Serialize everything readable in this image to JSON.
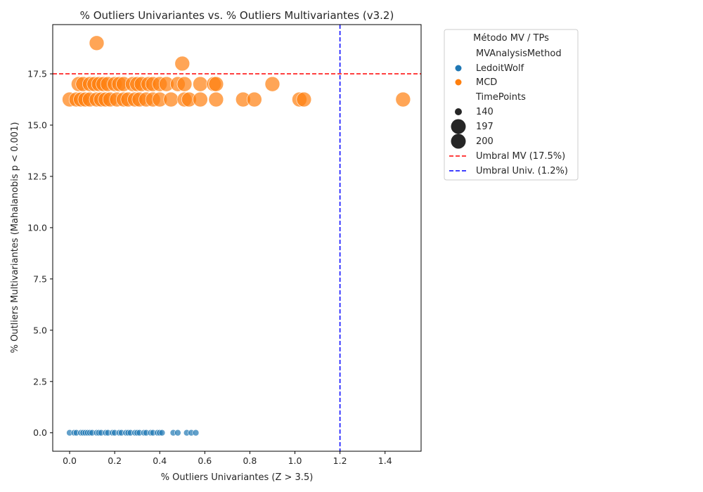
{
  "chart_data": {
    "type": "scatter",
    "title": "% Outliers Univariantes vs. % Outliers Multivariantes (v3.2)",
    "xlabel": "% Outliers Univariantes (Z > 3.5)",
    "ylabel": "% Outliers Multivariantes (Mahalanobis p < 0.001)",
    "xlim": [
      -0.075,
      1.56
    ],
    "ylim": [
      -0.9,
      19.9
    ],
    "xticks": [
      "0.0",
      "0.2",
      "0.4",
      "0.6",
      "0.8",
      "1.0",
      "1.2",
      "1.4"
    ],
    "xtick_values": [
      0,
      0.2,
      0.4,
      0.6,
      0.8,
      1.0,
      1.2,
      1.4
    ],
    "yticks": [
      "0.0",
      "2.5",
      "5.0",
      "7.5",
      "10.0",
      "12.5",
      "15.0",
      "17.5"
    ],
    "ytick_values": [
      0,
      2.5,
      5.0,
      7.5,
      10.0,
      12.5,
      15.0,
      17.5
    ],
    "grid": false,
    "legend_position": "outside-right",
    "reference_lines": [
      {
        "orientation": "horizontal",
        "value": 17.5,
        "label": "Umbral MV (17.5%)",
        "color": "#ff0000",
        "style": "dashed"
      },
      {
        "orientation": "vertical",
        "value": 1.2,
        "label": "Umbral Univ. (1.2%)",
        "color": "#0000ff",
        "style": "dashed"
      }
    ],
    "legend": {
      "title": "Método MV / TPs",
      "hue_title": "MVAnalysisMethod",
      "size_title": "TimePoints",
      "hue_entries": [
        {
          "label": "LedoitWolf",
          "color": "#1f77b4"
        },
        {
          "label": "MCD",
          "color": "#ff7f0e"
        }
      ],
      "size_entries": [
        "140",
        "197",
        "200"
      ]
    },
    "series": [
      {
        "name": "LedoitWolf",
        "color": "#1f77b4",
        "points": [
          {
            "x": 0.0,
            "y": 0.0
          },
          {
            "x": 0.02,
            "y": 0.0
          },
          {
            "x": 0.03,
            "y": 0.0
          },
          {
            "x": 0.05,
            "y": 0.0
          },
          {
            "x": 0.06,
            "y": 0.0
          },
          {
            "x": 0.07,
            "y": 0.0
          },
          {
            "x": 0.08,
            "y": 0.0
          },
          {
            "x": 0.09,
            "y": 0.0
          },
          {
            "x": 0.1,
            "y": 0.0
          },
          {
            "x": 0.12,
            "y": 0.0
          },
          {
            "x": 0.13,
            "y": 0.0
          },
          {
            "x": 0.14,
            "y": 0.0
          },
          {
            "x": 0.16,
            "y": 0.0
          },
          {
            "x": 0.17,
            "y": 0.0
          },
          {
            "x": 0.19,
            "y": 0.0
          },
          {
            "x": 0.2,
            "y": 0.0
          },
          {
            "x": 0.22,
            "y": 0.0
          },
          {
            "x": 0.23,
            "y": 0.0
          },
          {
            "x": 0.25,
            "y": 0.0
          },
          {
            "x": 0.26,
            "y": 0.0
          },
          {
            "x": 0.27,
            "y": 0.0
          },
          {
            "x": 0.29,
            "y": 0.0
          },
          {
            "x": 0.3,
            "y": 0.0
          },
          {
            "x": 0.31,
            "y": 0.0
          },
          {
            "x": 0.33,
            "y": 0.0
          },
          {
            "x": 0.34,
            "y": 0.0
          },
          {
            "x": 0.36,
            "y": 0.0
          },
          {
            "x": 0.37,
            "y": 0.0
          },
          {
            "x": 0.39,
            "y": 0.0
          },
          {
            "x": 0.4,
            "y": 0.0
          },
          {
            "x": 0.41,
            "y": 0.0
          },
          {
            "x": 0.46,
            "y": 0.0
          },
          {
            "x": 0.48,
            "y": 0.0
          },
          {
            "x": 0.52,
            "y": 0.0
          },
          {
            "x": 0.54,
            "y": 0.0
          },
          {
            "x": 0.56,
            "y": 0.0
          }
        ]
      },
      {
        "name": "MCD",
        "color": "#ff7f0e",
        "points": [
          {
            "x": 0.12,
            "y": 19.0
          },
          {
            "x": 0.5,
            "y": 18.0
          },
          {
            "x": 0.04,
            "y": 17.0
          },
          {
            "x": 0.06,
            "y": 17.0
          },
          {
            "x": 0.09,
            "y": 17.0
          },
          {
            "x": 0.11,
            "y": 17.0
          },
          {
            "x": 0.13,
            "y": 17.0
          },
          {
            "x": 0.15,
            "y": 17.0
          },
          {
            "x": 0.17,
            "y": 17.0
          },
          {
            "x": 0.2,
            "y": 17.0
          },
          {
            "x": 0.22,
            "y": 17.0
          },
          {
            "x": 0.24,
            "y": 17.0
          },
          {
            "x": 0.28,
            "y": 17.0
          },
          {
            "x": 0.3,
            "y": 17.0
          },
          {
            "x": 0.32,
            "y": 17.0
          },
          {
            "x": 0.35,
            "y": 17.0
          },
          {
            "x": 0.37,
            "y": 17.0
          },
          {
            "x": 0.4,
            "y": 17.0
          },
          {
            "x": 0.43,
            "y": 17.0
          },
          {
            "x": 0.48,
            "y": 17.0
          },
          {
            "x": 0.51,
            "y": 17.0
          },
          {
            "x": 0.58,
            "y": 17.0
          },
          {
            "x": 0.64,
            "y": 17.0
          },
          {
            "x": 0.65,
            "y": 17.0
          },
          {
            "x": 0.9,
            "y": 17.0
          },
          {
            "x": 0.0,
            "y": 16.25
          },
          {
            "x": 0.03,
            "y": 16.25
          },
          {
            "x": 0.05,
            "y": 16.25
          },
          {
            "x": 0.07,
            "y": 16.25
          },
          {
            "x": 0.09,
            "y": 16.25
          },
          {
            "x": 0.12,
            "y": 16.25
          },
          {
            "x": 0.14,
            "y": 16.25
          },
          {
            "x": 0.16,
            "y": 16.25
          },
          {
            "x": 0.18,
            "y": 16.25
          },
          {
            "x": 0.21,
            "y": 16.25
          },
          {
            "x": 0.24,
            "y": 16.25
          },
          {
            "x": 0.26,
            "y": 16.25
          },
          {
            "x": 0.29,
            "y": 16.25
          },
          {
            "x": 0.31,
            "y": 16.25
          },
          {
            "x": 0.34,
            "y": 16.25
          },
          {
            "x": 0.37,
            "y": 16.25
          },
          {
            "x": 0.4,
            "y": 16.25
          },
          {
            "x": 0.45,
            "y": 16.25
          },
          {
            "x": 0.51,
            "y": 16.25
          },
          {
            "x": 0.53,
            "y": 16.25
          },
          {
            "x": 0.58,
            "y": 16.25
          },
          {
            "x": 0.65,
            "y": 16.25
          },
          {
            "x": 0.77,
            "y": 16.25
          },
          {
            "x": 0.82,
            "y": 16.25
          },
          {
            "x": 1.02,
            "y": 16.25
          },
          {
            "x": 1.04,
            "y": 16.25
          },
          {
            "x": 1.48,
            "y": 16.25
          }
        ]
      }
    ]
  }
}
